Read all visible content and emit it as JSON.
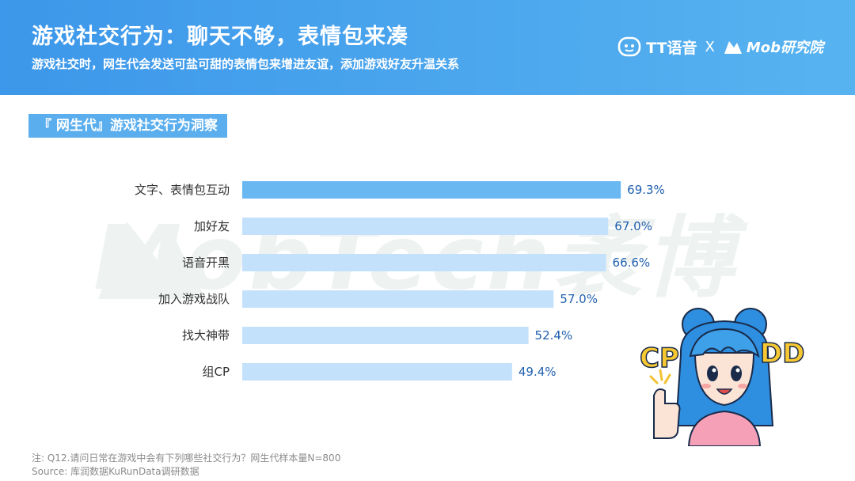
{
  "header": {
    "title": "游戏社交行为：聊天不够，表情包来凑",
    "subtitle": "游戏社交时，网生代会发送可盐可甜的表情包来增进友谊，添加游戏好友升温关系",
    "brand_tt": "TT语音",
    "brand_separator": "X",
    "brand_mob": "Mob研究院"
  },
  "section_tag": "『 网生代』游戏社交行为洞察",
  "watermark": "MobTech袤博",
  "illustration": {
    "left_text": "CP",
    "right_text": "DD"
  },
  "chart_data": {
    "type": "bar",
    "orientation": "horizontal",
    "categories": [
      "文字、表情包互动",
      "加好友",
      "语音开黑",
      "加入游戏战队",
      "找大神带",
      "组CP"
    ],
    "values": [
      69.3,
      67.0,
      66.6,
      57.0,
      52.4,
      49.4
    ],
    "value_labels": [
      "69.3%",
      "67.0%",
      "66.6%",
      "57.0%",
      "52.4%",
      "49.4%"
    ],
    "unit": "%",
    "highlight_index": 0,
    "colors": {
      "highlight": "#6ab8f2",
      "bar": "#c4e1fb",
      "label": "#1f5fae",
      "category": "#333333"
    },
    "xlim": [
      0,
      100
    ],
    "grid": false,
    "legend": "none"
  },
  "footer": {
    "note": "注:  Q12.请问日常在游戏中会有下列哪些社交行为？网生代样本量N=800",
    "source": "Source:  库润数据KuRunData调研数据"
  }
}
